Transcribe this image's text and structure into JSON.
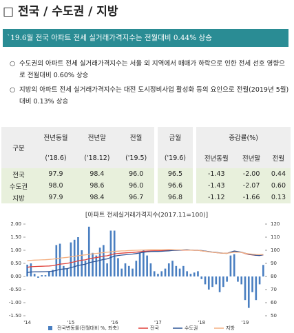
{
  "header": {
    "title": "□ 전국 / 수도권 / 지방"
  },
  "summary": "`19.6월 전국 아파트 전세 실거래가격지수는 전월대비 0.44% 상승",
  "bullets": [
    "수도권의 아파트 전세 실거래가격지수는 서울 외 지역에서 매매가 하락으로 인한 전세 선호 영향으로 전월대비 0.60% 상승",
    "지방의 아파트 전세 실거래가격지수는 대전 도시정비사업 활성화 등의 요인으로 전월(2019년 5월)대비 0.13% 상승"
  ],
  "table": {
    "header": [
      "구분",
      "전년동월",
      "전년말",
      "전월",
      "금월",
      "증감률(%)"
    ],
    "subheader": [
      "('18.6)",
      "('18.12)",
      "('19.5)",
      "('19.6)",
      "전년동월",
      "전년말",
      "전월"
    ],
    "rows": [
      [
        "전국",
        "97.9",
        "98.4",
        "96.0",
        "96.5",
        "-1.43",
        "-2.00",
        "0.44"
      ],
      [
        "수도권",
        "98.0",
        "98.6",
        "96.0",
        "96.6",
        "-1.43",
        "-2.07",
        "0.60"
      ],
      [
        "지방",
        "97.9",
        "98.4",
        "96.7",
        "96.8",
        "-1.12",
        "-1.66",
        "0.13"
      ]
    ]
  },
  "chart_data": {
    "type": "combo",
    "title": "[아파트 전세실거래가격지수(2017.11=100)]",
    "categories": [
      "'14",
      null,
      null,
      null,
      null,
      null,
      null,
      null,
      null,
      null,
      null,
      null,
      "'15",
      null,
      null,
      null,
      null,
      null,
      null,
      null,
      null,
      null,
      null,
      null,
      "'16",
      null,
      null,
      null,
      null,
      null,
      null,
      null,
      null,
      null,
      null,
      null,
      "'17",
      null,
      null,
      null,
      null,
      null,
      null,
      null,
      null,
      null,
      null,
      null,
      "'18",
      null,
      null,
      null,
      null,
      null,
      null,
      null,
      null,
      null,
      null,
      null,
      "'19",
      null,
      null,
      null,
      null,
      null
    ],
    "ylim": [
      -1.5,
      2.0
    ],
    "yticks": [
      {
        "value": -1.5,
        "label": "-1.50"
      },
      {
        "value": -1,
        "label": "-1.00"
      },
      {
        "value": -0.5,
        "label": "-0.50"
      },
      {
        "value": 0,
        "label": "0.00"
      },
      {
        "value": 0.5,
        "label": "0.50"
      },
      {
        "value": 1,
        "label": "1.00"
      },
      {
        "value": 1.5,
        "label": "1.50"
      },
      {
        "value": 2,
        "label": "2.00"
      }
    ],
    "y2lim": [
      50,
      120
    ],
    "y2ticks": [
      50,
      60,
      70,
      80,
      90,
      100,
      110,
      120
    ],
    "series": [
      {
        "name": "전국변동률(전월대비 %, 좌축)",
        "color": "#4a7fc1",
        "mark": "bar",
        "values": [
          0.45,
          0.5,
          0.1,
          -0.05,
          0.05,
          0.05,
          0.2,
          0.25,
          1.2,
          1.25,
          0.4,
          0.3,
          1.3,
          1.4,
          1.5,
          1.0,
          0.6,
          1.9,
          0.9,
          0.8,
          1.1,
          1.2,
          0.5,
          1.75,
          1.75,
          0.7,
          0.3,
          0.5,
          0.4,
          0.3,
          0.6,
          0.9,
          1.0,
          0.8,
          0.5,
          0.2,
          0.1,
          0.2,
          0.3,
          0.5,
          0.6,
          0.4,
          0.3,
          0.4,
          0.2,
          0.1,
          0.15,
          0.2,
          -0.1,
          -0.3,
          -0.5,
          -0.4,
          -0.3,
          -0.6,
          -0.4,
          -0.2,
          0.8,
          0.85,
          -0.2,
          -0.3,
          -0.9,
          -1.2,
          -0.6,
          -0.9,
          -0.3,
          0.44
        ]
      },
      {
        "name": "전국",
        "color": "#e0413a",
        "mark": "line",
        "axis": "y2",
        "values": [
          87.0,
          87.4,
          87.6,
          87.7,
          87.8,
          87.9,
          88.0,
          88.2,
          88.8,
          89.4,
          89.7,
          90.0,
          90.6,
          91.2,
          91.9,
          92.4,
          92.7,
          93.5,
          94.0,
          94.4,
          94.9,
          95.5,
          95.8,
          96.6,
          97.3,
          97.6,
          97.8,
          98.0,
          98.2,
          98.3,
          98.6,
          98.9,
          99.2,
          99.4,
          99.5,
          99.6,
          99.6,
          99.7,
          99.8,
          99.9,
          100.0,
          100.0,
          100.1,
          100.1,
          100.2,
          100.1,
          100.0,
          100.0,
          99.6,
          99.3,
          98.9,
          98.5,
          98.2,
          97.9,
          97.8,
          97.7,
          98.4,
          98.9,
          98.6,
          98.4,
          97.5,
          96.8,
          96.5,
          96.1,
          96.0,
          96.5
        ]
      },
      {
        "name": "수도권",
        "color": "#2f5597",
        "mark": "line",
        "axis": "y2",
        "values": [
          83.0,
          83.4,
          83.5,
          83.5,
          83.6,
          83.7,
          83.8,
          84.0,
          84.7,
          85.4,
          85.7,
          86.0,
          86.8,
          87.5,
          88.4,
          88.9,
          89.3,
          90.5,
          91.1,
          91.6,
          92.3,
          93.0,
          93.4,
          94.5,
          95.5,
          96.0,
          96.3,
          96.6,
          96.9,
          97.1,
          97.5,
          98.0,
          98.5,
          98.8,
          99.0,
          99.1,
          99.1,
          99.2,
          99.4,
          99.6,
          99.9,
          100.0,
          100.1,
          100.3,
          100.4,
          100.2,
          100.0,
          100.0,
          99.8,
          99.4,
          99.0,
          98.6,
          98.4,
          98.0,
          97.8,
          97.6,
          98.6,
          99.4,
          99.0,
          98.6,
          97.8,
          97.0,
          96.6,
          96.2,
          96.0,
          96.6
        ]
      },
      {
        "name": "지방",
        "color": "#f4b183",
        "mark": "line",
        "axis": "y2",
        "values": [
          92.0,
          92.3,
          92.5,
          92.6,
          92.7,
          92.8,
          93.0,
          93.2,
          93.6,
          94.0,
          94.3,
          94.6,
          95.0,
          95.4,
          95.8,
          96.2,
          96.5,
          96.9,
          97.3,
          97.6,
          97.9,
          98.2,
          98.5,
          98.8,
          99.1,
          99.3,
          99.5,
          99.6,
          99.8,
          99.9,
          100.0,
          100.1,
          100.2,
          100.3,
          100.4,
          100.4,
          100.4,
          100.5,
          100.5,
          100.5,
          100.4,
          100.3,
          100.3,
          100.2,
          100.2,
          100.1,
          100.0,
          100.0,
          99.6,
          99.2,
          98.8,
          98.5,
          98.2,
          97.9,
          97.8,
          97.7,
          98.1,
          98.6,
          98.5,
          98.4,
          97.7,
          97.3,
          97.0,
          96.8,
          96.7,
          96.8
        ]
      }
    ],
    "grid": false
  }
}
